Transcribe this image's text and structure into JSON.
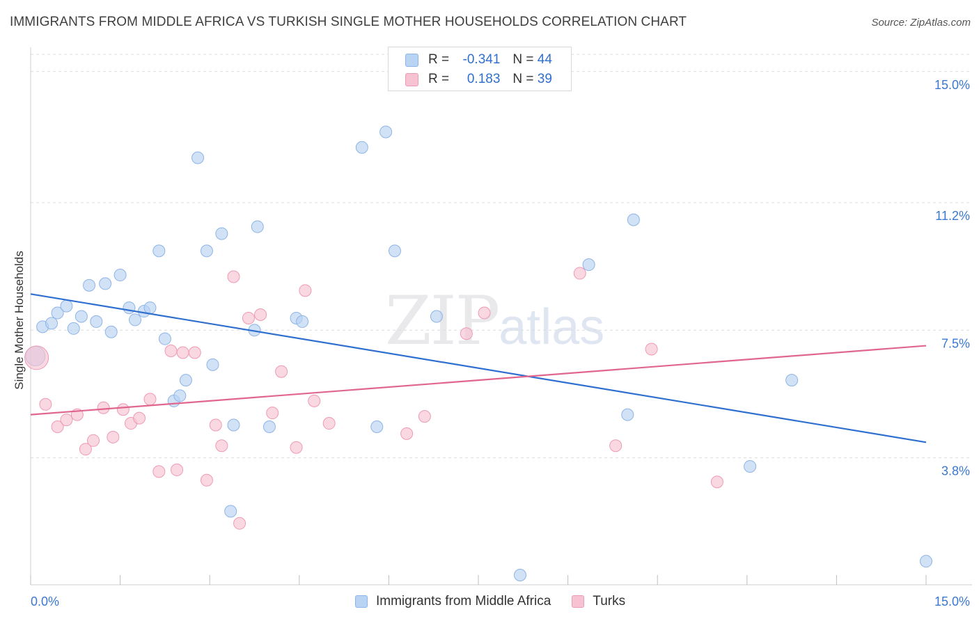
{
  "header": {
    "title": "IMMIGRANTS FROM MIDDLE AFRICA VS TURKISH SINGLE MOTHER HOUSEHOLDS CORRELATION CHART",
    "source": "Source: ZipAtlas.com"
  },
  "watermark": {
    "zip": "ZIP",
    "atlas": "atlas"
  },
  "stats": {
    "r_label": "R =",
    "n_label": "N =",
    "blue": {
      "r": "-0.341",
      "n": "44"
    },
    "pink": {
      "r": "0.183",
      "n": "39"
    }
  },
  "colors": {
    "blue_fill": "#b9d3f3",
    "blue_stroke": "#8db4e6",
    "blue_line": "#2f6fcf",
    "pink_fill": "#f7c3d3",
    "pink_stroke": "#ee9ab4",
    "pink_line": "#e0668e",
    "grid": "#dcdcdc",
    "tick_label": "#3a78d2"
  },
  "chart_data": {
    "type": "scatter",
    "xlabel": "",
    "ylabel": "Single Mother Households",
    "xlim": [
      0,
      15
    ],
    "ylim": [
      0.4,
      15.5
    ],
    "x_tick_labels": [
      "0.0%",
      "15.0%"
    ],
    "y_ticks": [
      3.8,
      7.5,
      11.2,
      15.0
    ],
    "y_tick_labels": [
      "3.8%",
      "7.5%",
      "11.2%",
      "15.0%"
    ],
    "grid": "horizontal dashed",
    "legend": "bottom-center",
    "series": [
      {
        "name": "Immigrants from Middle Africa",
        "color": "blue",
        "trend": [
          [
            0,
            8.55
          ],
          [
            15,
            4.25
          ]
        ],
        "points": [
          [
            0.08,
            6.75,
            2
          ],
          [
            0.2,
            7.6,
            1
          ],
          [
            0.35,
            7.7,
            1
          ],
          [
            0.45,
            8.0,
            1
          ],
          [
            0.6,
            8.2,
            1
          ],
          [
            0.72,
            7.55,
            1
          ],
          [
            0.85,
            7.9,
            1
          ],
          [
            0.98,
            8.8,
            1
          ],
          [
            1.1,
            7.75,
            1
          ],
          [
            1.25,
            8.85,
            1
          ],
          [
            1.35,
            7.45,
            1
          ],
          [
            1.5,
            9.1,
            1
          ],
          [
            1.65,
            8.15,
            1
          ],
          [
            1.75,
            7.8,
            1
          ],
          [
            1.9,
            8.05,
            1
          ],
          [
            2.0,
            8.15,
            1
          ],
          [
            2.15,
            9.8,
            1
          ],
          [
            2.25,
            7.25,
            1
          ],
          [
            2.4,
            5.45,
            1
          ],
          [
            2.5,
            5.6,
            1
          ],
          [
            2.6,
            6.05,
            1
          ],
          [
            2.8,
            12.5,
            1
          ],
          [
            2.95,
            9.8,
            1
          ],
          [
            3.05,
            6.5,
            1
          ],
          [
            3.2,
            10.3,
            1
          ],
          [
            3.35,
            2.25,
            1
          ],
          [
            3.4,
            4.75,
            1
          ],
          [
            3.75,
            7.5,
            1
          ],
          [
            3.8,
            10.5,
            1
          ],
          [
            4.0,
            4.7,
            1
          ],
          [
            4.45,
            7.85,
            1
          ],
          [
            4.55,
            7.75,
            1
          ],
          [
            5.55,
            12.8,
            1
          ],
          [
            5.8,
            4.7,
            1
          ],
          [
            5.95,
            13.25,
            1
          ],
          [
            6.1,
            9.8,
            1
          ],
          [
            6.8,
            7.9,
            1
          ],
          [
            8.2,
            0.4,
            1
          ],
          [
            9.35,
            9.4,
            1
          ],
          [
            10.0,
            5.05,
            1
          ],
          [
            10.1,
            10.7,
            1
          ],
          [
            12.05,
            3.55,
            1
          ],
          [
            12.75,
            6.05,
            1
          ],
          [
            15.0,
            0.8,
            1
          ]
        ]
      },
      {
        "name": "Turks",
        "color": "pink",
        "trend": [
          [
            0,
            5.05
          ],
          [
            15,
            7.05
          ]
        ],
        "points": [
          [
            0.1,
            6.7,
            3
          ],
          [
            0.25,
            5.35,
            1
          ],
          [
            0.45,
            4.7,
            1
          ],
          [
            0.6,
            4.9,
            1
          ],
          [
            0.78,
            5.05,
            1
          ],
          [
            0.92,
            4.05,
            1
          ],
          [
            1.05,
            4.3,
            1
          ],
          [
            1.22,
            5.25,
            1
          ],
          [
            1.38,
            4.4,
            1
          ],
          [
            1.55,
            5.2,
            1
          ],
          [
            1.68,
            4.8,
            1
          ],
          [
            1.82,
            4.95,
            1
          ],
          [
            2.0,
            5.5,
            1
          ],
          [
            2.15,
            3.4,
            1
          ],
          [
            2.35,
            6.9,
            1
          ],
          [
            2.45,
            3.45,
            1
          ],
          [
            2.55,
            6.85,
            1
          ],
          [
            2.75,
            6.85,
            1
          ],
          [
            2.95,
            3.15,
            1
          ],
          [
            3.1,
            4.75,
            1
          ],
          [
            3.2,
            4.15,
            1
          ],
          [
            3.4,
            9.05,
            1
          ],
          [
            3.5,
            1.9,
            1
          ],
          [
            3.65,
            7.85,
            1
          ],
          [
            3.85,
            7.95,
            1
          ],
          [
            4.05,
            5.1,
            1
          ],
          [
            4.2,
            6.3,
            1
          ],
          [
            4.45,
            4.1,
            1
          ],
          [
            4.6,
            8.65,
            1
          ],
          [
            4.75,
            5.45,
            1
          ],
          [
            5.0,
            4.8,
            1
          ],
          [
            6.3,
            4.5,
            1
          ],
          [
            6.6,
            5.0,
            1
          ],
          [
            7.3,
            7.4,
            1
          ],
          [
            7.6,
            8.0,
            1
          ],
          [
            9.2,
            9.15,
            1
          ],
          [
            9.8,
            4.15,
            1
          ],
          [
            10.4,
            6.95,
            1
          ],
          [
            11.5,
            3.1,
            1
          ]
        ]
      }
    ]
  }
}
